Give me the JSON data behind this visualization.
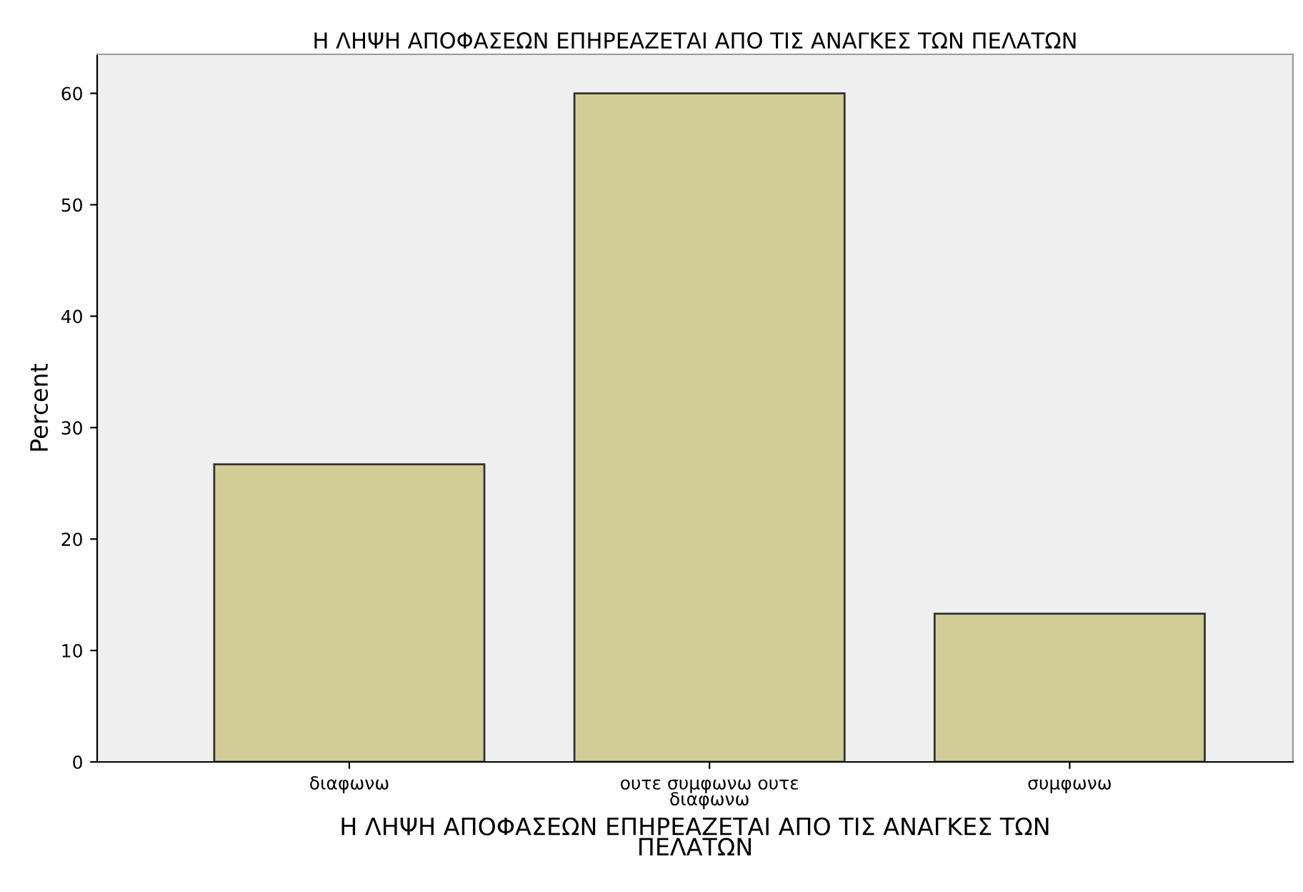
{
  "chart_data": {
    "type": "bar",
    "title": "Η ΛΗΨΗ ΑΠΟΦΑΣΕΩΝ ΕΠΗΡΕΑΖΕΤΑΙ ΑΠΟ ΤΙΣ ΑΝΑΓΚΕΣ ΤΩΝ ΠΕΛΑΤΩΝ",
    "xlabel": "Η ΛΗΨΗ ΑΠΟΦΑΣΕΩΝ ΕΠΗΡΕΑΖΕΤΑΙ ΑΠΟ ΤΙΣ ΑΝΑΓΚΕΣ ΤΩΝ\nΠΕΛΑΤΩΝ",
    "ylabel": "Percent",
    "categories": [
      "διαφωνω",
      "ουτε συμφωνω ουτε\nδιαφωνω",
      "συμφωνω"
    ],
    "values": [
      26.7,
      60,
      13.3
    ],
    "color": "#d2cd96",
    "ylim": [
      0,
      63.5
    ],
    "yticks": [
      0,
      10,
      20,
      30,
      40,
      50,
      60
    ],
    "grid": false,
    "legend": false
  }
}
